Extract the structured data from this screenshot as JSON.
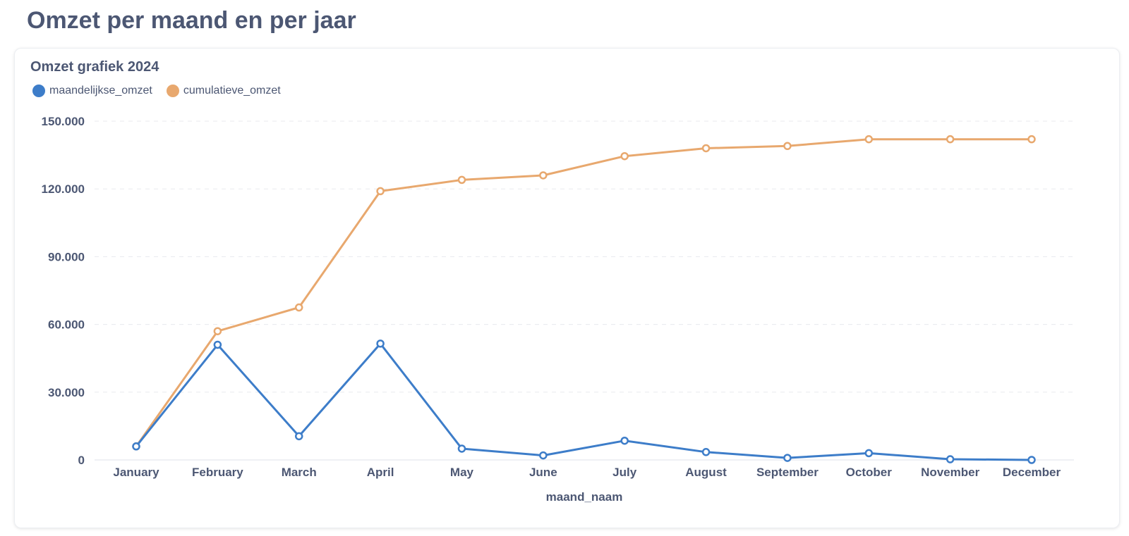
{
  "page": {
    "title": "Omzet per maand en per jaar"
  },
  "card": {
    "title": "Omzet grafiek 2024"
  },
  "colors": {
    "monthly": "#3d7dc9",
    "cumulative": "#e8a86e",
    "grid": "#e8eaee",
    "text": "#4c5773"
  },
  "legend": [
    {
      "label": "maandelijkse_omzet",
      "color": "#3d7dc9"
    },
    {
      "label": "cumulatieve_omzet",
      "color": "#e8a86e"
    }
  ],
  "chart_data": {
    "type": "line",
    "title": "Omzet grafiek 2024",
    "xlabel": "maand_naam",
    "ylabel": "",
    "categories": [
      "January",
      "February",
      "March",
      "April",
      "May",
      "June",
      "July",
      "August",
      "September",
      "October",
      "November",
      "December"
    ],
    "ylim": [
      0,
      150000
    ],
    "yticks": [
      0,
      30000,
      60000,
      90000,
      120000,
      150000
    ],
    "ytick_labels": [
      "0",
      "30.000",
      "60.000",
      "90.000",
      "120.000",
      "150.000"
    ],
    "grid": true,
    "legend_position": "top-left",
    "series": [
      {
        "name": "maandelijkse_omzet",
        "color": "#3d7dc9",
        "values": [
          6000,
          51000,
          10500,
          51500,
          5000,
          2000,
          8500,
          3500,
          900,
          3000,
          300,
          0
        ]
      },
      {
        "name": "cumulatieve_omzet",
        "color": "#e8a86e",
        "values": [
          6000,
          57000,
          67500,
          119000,
          124000,
          126000,
          134500,
          138000,
          139000,
          142000,
          142000,
          142000
        ]
      }
    ]
  }
}
